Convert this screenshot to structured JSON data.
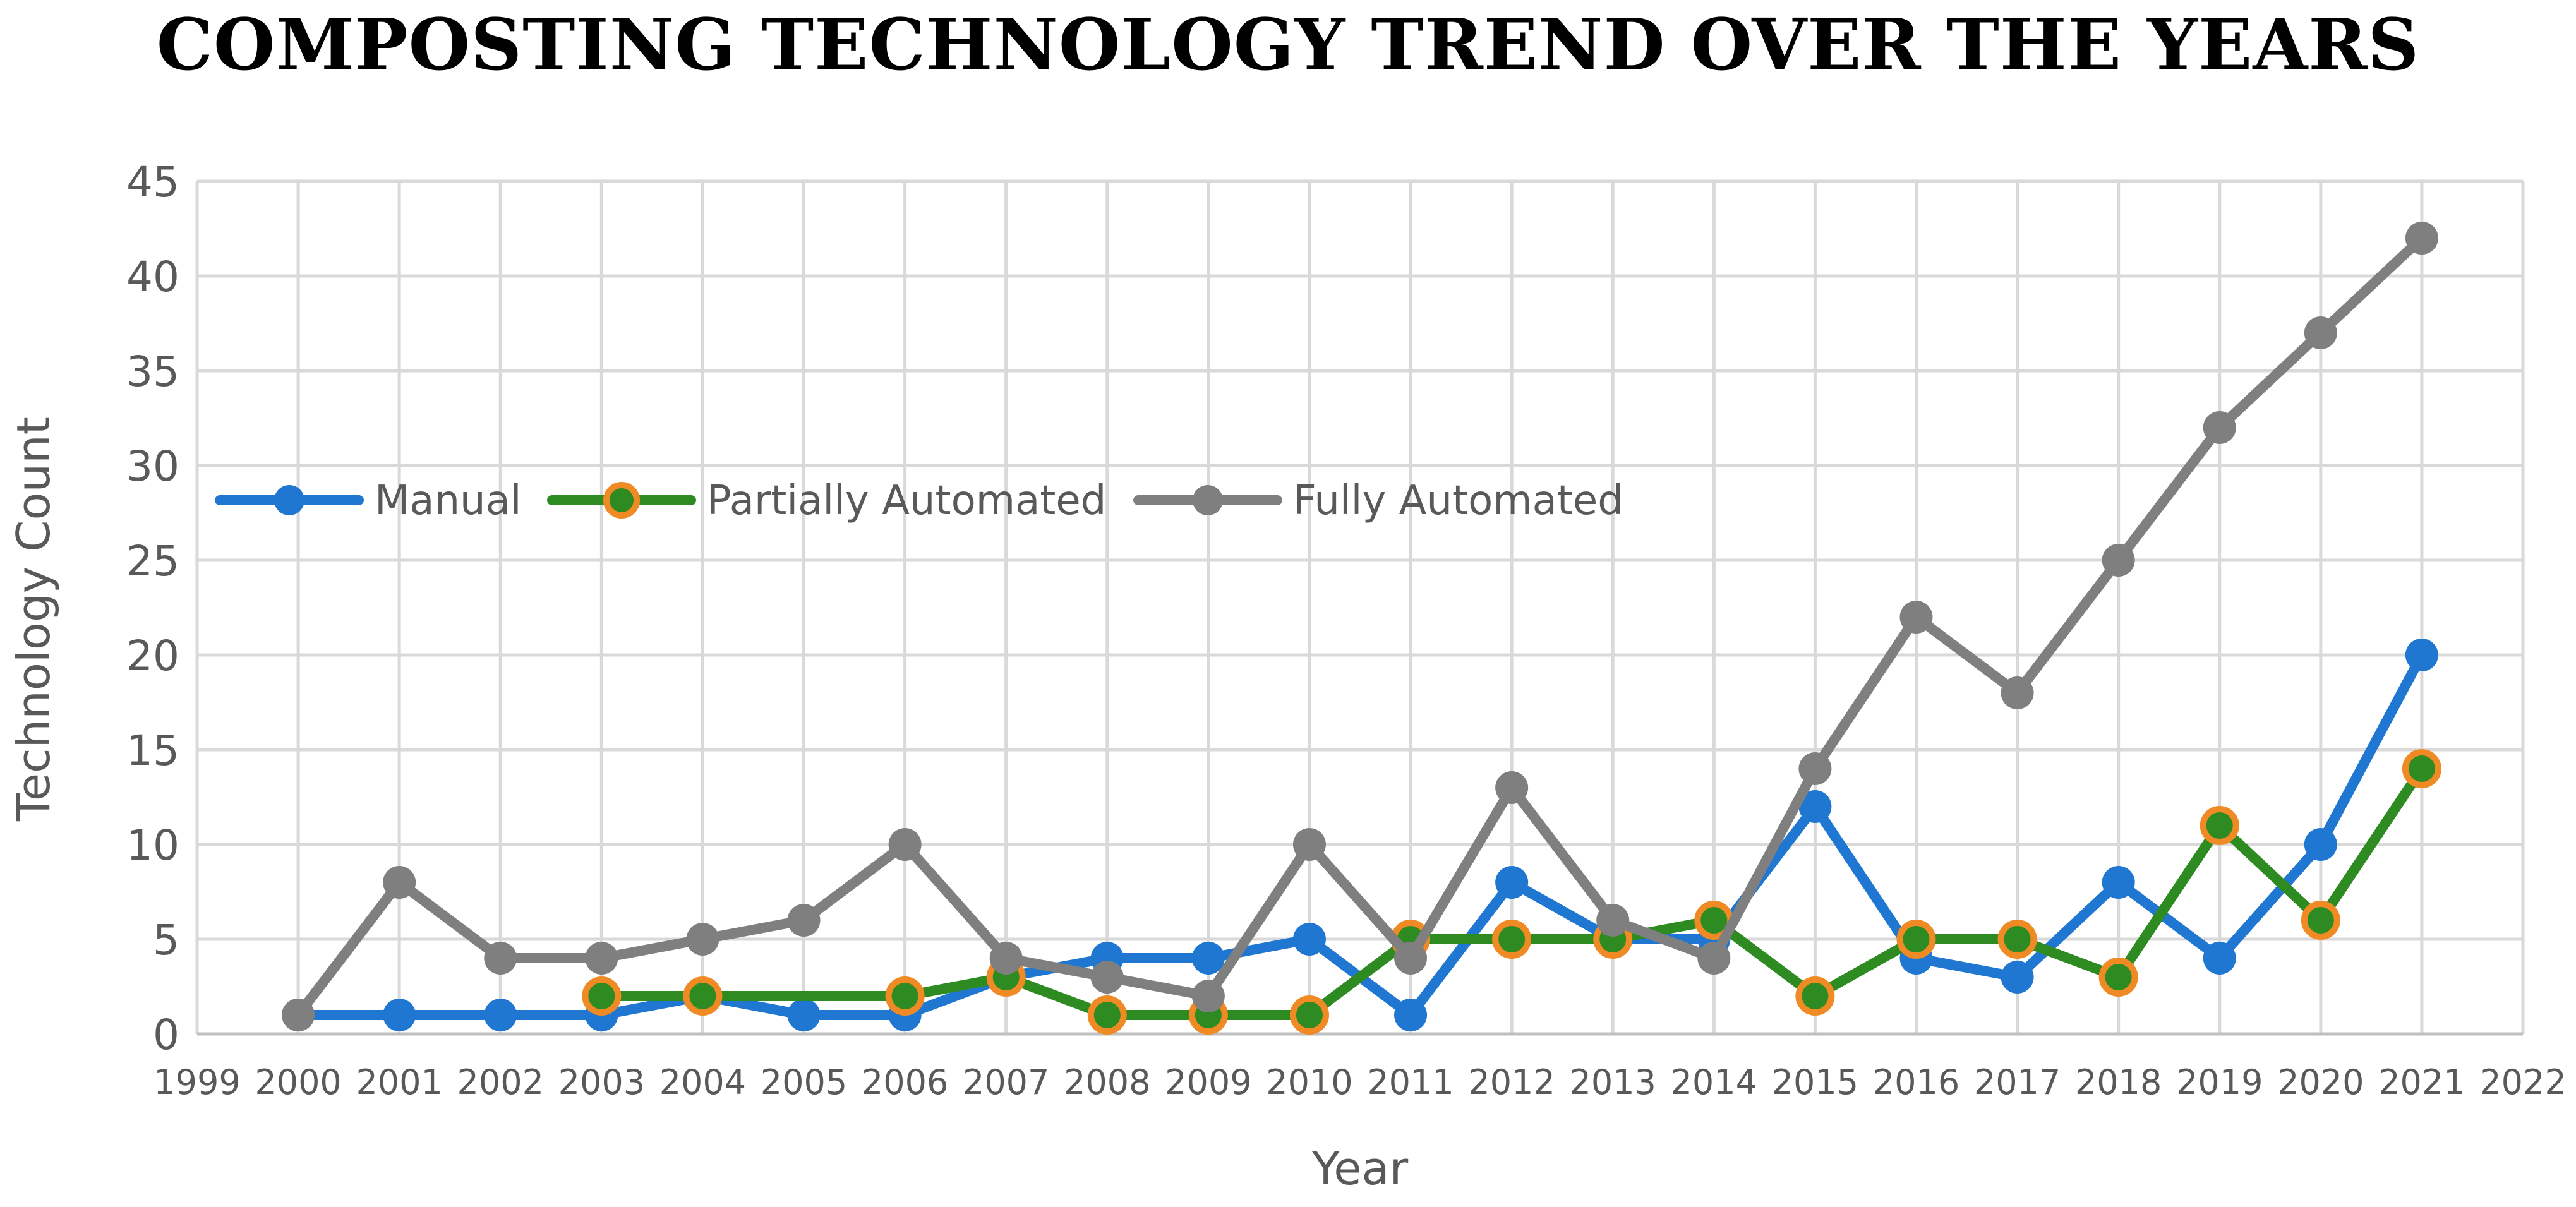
{
  "chart_data": {
    "type": "line",
    "title": "COMPOSTING TECHNOLOGY TREND OVER THE YEARS",
    "xlabel": "Year",
    "ylabel": "Technology Count",
    "xlim": [
      1999,
      2022
    ],
    "ylim": [
      0,
      45
    ],
    "yticks": [
      0,
      5,
      10,
      15,
      20,
      25,
      30,
      35,
      40,
      45
    ],
    "xticks": [
      1999,
      2000,
      2001,
      2002,
      2003,
      2004,
      2005,
      2006,
      2007,
      2008,
      2009,
      2010,
      2011,
      2012,
      2013,
      2014,
      2015,
      2016,
      2017,
      2018,
      2019,
      2020,
      2021,
      2022
    ],
    "grid": true,
    "legend_position": "upper-left inside plot",
    "series": [
      {
        "name": "Manual",
        "color": "#1f77d2",
        "marker_fill": "#1f77d2",
        "marker_edge": "#1f77d2",
        "x": [
          2000,
          2001,
          2002,
          2003,
          2004,
          2005,
          2006,
          2007,
          2008,
          2009,
          2010,
          2011,
          2012,
          2013,
          2014,
          2015,
          2016,
          2017,
          2018,
          2019,
          2020,
          2021
        ],
        "values": [
          1,
          1,
          1,
          1,
          2,
          1,
          1,
          3,
          4,
          4,
          5,
          1,
          8,
          5,
          5,
          12,
          4,
          3,
          8,
          4,
          10,
          20
        ]
      },
      {
        "name": "Partially Automated",
        "color": "#2e8b22",
        "marker_fill": "#2e8b22",
        "marker_edge": "#f08a24",
        "x": [
          2003,
          2004,
          2006,
          2007,
          2008,
          2009,
          2010,
          2011,
          2012,
          2013,
          2014,
          2015,
          2016,
          2017,
          2018,
          2019,
          2020,
          2021
        ],
        "values": [
          2,
          2,
          2,
          3,
          1,
          1,
          1,
          5,
          5,
          5,
          6,
          2,
          5,
          5,
          3,
          11,
          6,
          14
        ]
      },
      {
        "name": "Fully Automated",
        "color": "#7f7f7f",
        "marker_fill": "#7f7f7f",
        "marker_edge": "#7f7f7f",
        "x": [
          2000,
          2001,
          2002,
          2003,
          2004,
          2005,
          2006,
          2007,
          2008,
          2009,
          2010,
          2011,
          2012,
          2013,
          2014,
          2015,
          2016,
          2017,
          2018,
          2019,
          2020,
          2021
        ],
        "values": [
          1,
          8,
          4,
          4,
          5,
          6,
          10,
          4,
          3,
          2,
          10,
          4,
          13,
          6,
          4,
          14,
          22,
          18,
          25,
          32,
          37,
          42
        ]
      }
    ]
  }
}
